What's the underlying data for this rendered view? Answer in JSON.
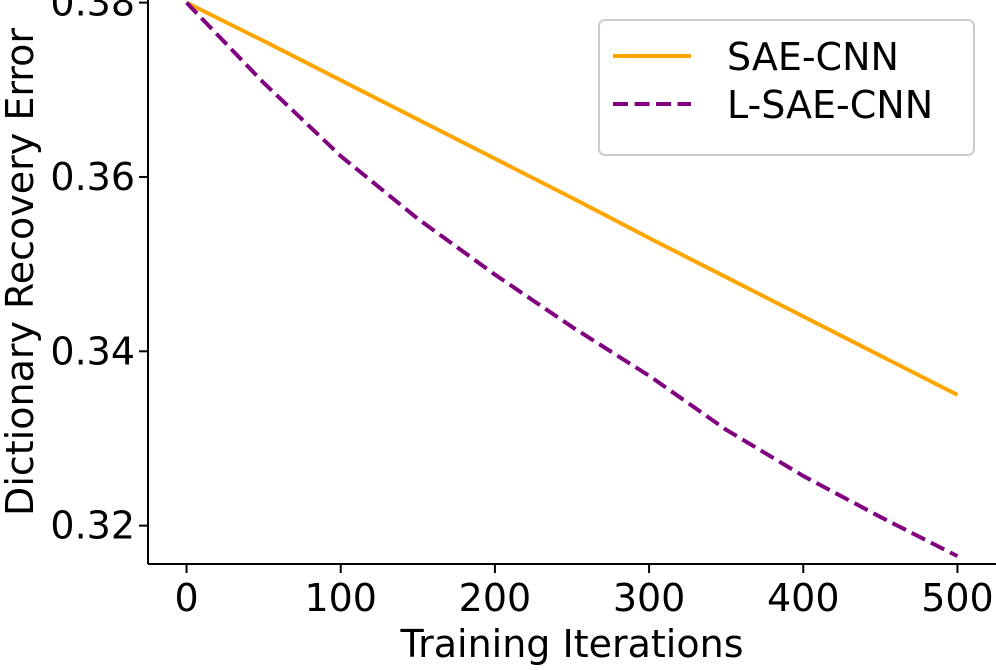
{
  "chart_data": {
    "type": "line",
    "title": "",
    "xlabel": "Training Iterations",
    "ylabel": "Dictionary Recovery Error",
    "xlim": [
      -25,
      525
    ],
    "ylim": [
      0.3156,
      0.3803
    ],
    "xticks": [
      0,
      100,
      200,
      300,
      400,
      500
    ],
    "yticks": [
      0.32,
      0.34,
      0.36,
      0.38
    ],
    "xtick_labels": [
      "0",
      "100",
      "200",
      "300",
      "400",
      "500"
    ],
    "ytick_labels": [
      "0.32",
      "0.34",
      "0.36",
      "0.38"
    ],
    "grid": false,
    "legend_position": "top-right",
    "x": [
      0,
      50,
      100,
      150,
      200,
      250,
      300,
      350,
      400,
      450,
      500
    ],
    "series": [
      {
        "name": "SAE-CNN",
        "color": "#ffa500",
        "style": "solid",
        "values": [
          0.38,
          0.3756,
          0.3711,
          0.3666,
          0.3621,
          0.3576,
          0.353,
          0.3485,
          0.344,
          0.3395,
          0.335
        ]
      },
      {
        "name": "L-SAE-CNN",
        "color": "#800080",
        "style": "dashed",
        "values": [
          0.38,
          0.3708,
          0.3624,
          0.3552,
          0.3488,
          0.3428,
          0.3372,
          0.331,
          0.3257,
          0.321,
          0.3165
        ]
      }
    ]
  }
}
